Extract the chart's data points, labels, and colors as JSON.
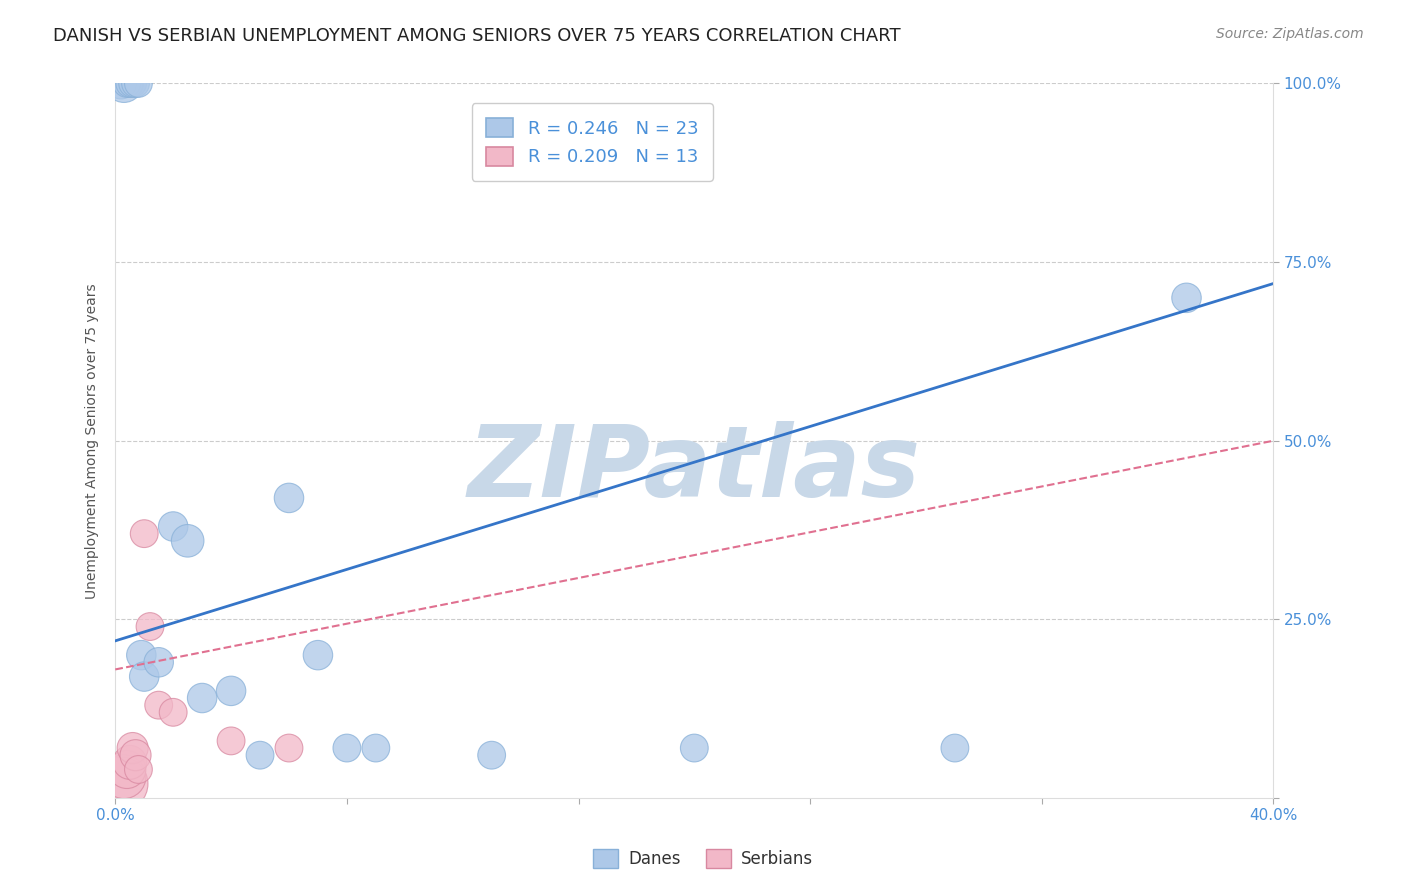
{
  "title": "DANISH VS SERBIAN UNEMPLOYMENT AMONG SENIORS OVER 75 YEARS CORRELATION CHART",
  "source": "Source: ZipAtlas.com",
  "ylabel": "Unemployment Among Seniors over 75 years",
  "danes_R": 0.246,
  "danes_N": 23,
  "serbians_R": 0.209,
  "serbians_N": 13,
  "xlim": [
    0.0,
    0.4
  ],
  "ylim": [
    0.0,
    1.0
  ],
  "danes_x": [
    0.002,
    0.003,
    0.004,
    0.005,
    0.006,
    0.007,
    0.008,
    0.009,
    0.01,
    0.015,
    0.02,
    0.025,
    0.03,
    0.04,
    0.05,
    0.06,
    0.07,
    0.08,
    0.09,
    0.13,
    0.2,
    0.29,
    0.37
  ],
  "danes_y": [
    1.0,
    1.0,
    1.0,
    1.0,
    1.0,
    1.0,
    1.0,
    0.2,
    0.17,
    0.19,
    0.38,
    0.36,
    0.14,
    0.15,
    0.06,
    0.42,
    0.2,
    0.07,
    0.07,
    0.06,
    0.07,
    0.07,
    0.7
  ],
  "danes_sizes": [
    100,
    150,
    80,
    80,
    80,
    80,
    80,
    90,
    90,
    90,
    90,
    110,
    90,
    90,
    80,
    90,
    90,
    80,
    80,
    80,
    80,
    80,
    90
  ],
  "serbians_x": [
    0.002,
    0.003,
    0.004,
    0.005,
    0.006,
    0.007,
    0.008,
    0.01,
    0.012,
    0.015,
    0.02,
    0.04,
    0.06
  ],
  "serbians_y": [
    0.02,
    0.03,
    0.04,
    0.05,
    0.07,
    0.06,
    0.04,
    0.37,
    0.24,
    0.13,
    0.12,
    0.08,
    0.07
  ],
  "serbians_sizes": [
    300,
    200,
    150,
    120,
    100,
    100,
    80,
    80,
    80,
    80,
    80,
    80,
    80
  ],
  "danes_color": "#adc8e8",
  "serbians_color": "#f2b8c8",
  "danes_line_color": "#3575c8",
  "serbians_line_color": "#e07090",
  "danes_trend_intercept": 0.22,
  "danes_trend_slope": 1.25,
  "serbians_trend_intercept": 0.18,
  "serbians_trend_slope": 0.8,
  "watermark_text": "ZIPatlas",
  "watermark_color": "#c8d8e8",
  "title_fontsize": 13,
  "axis_label_fontsize": 10,
  "tick_fontsize": 11,
  "legend_fontsize": 13,
  "source_fontsize": 10
}
